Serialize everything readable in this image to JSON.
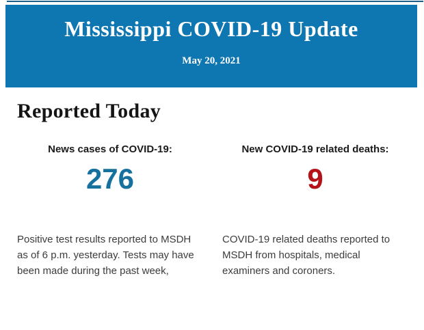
{
  "header": {
    "title": "Mississippi COVID-19 Update",
    "date": "May 20, 2021",
    "background_color": "#0e76b1",
    "text_color": "#ffffff",
    "top_line_color": "#1a5f8a"
  },
  "main": {
    "section_title": "Reported Today",
    "stats": [
      {
        "label": "News cases of COVID-19:",
        "value": "276",
        "value_color": "#17719f",
        "description": "Positive test results reported to MSDH as of 6 p.m. yesterday. Tests may have been made during the past week,"
      },
      {
        "label": "New COVID-19 related deaths:",
        "value": "9",
        "value_color": "#b5121a",
        "description": "COVID-19 related deaths reported to MSDH from hospitals, medical examiners and coroners."
      }
    ]
  }
}
